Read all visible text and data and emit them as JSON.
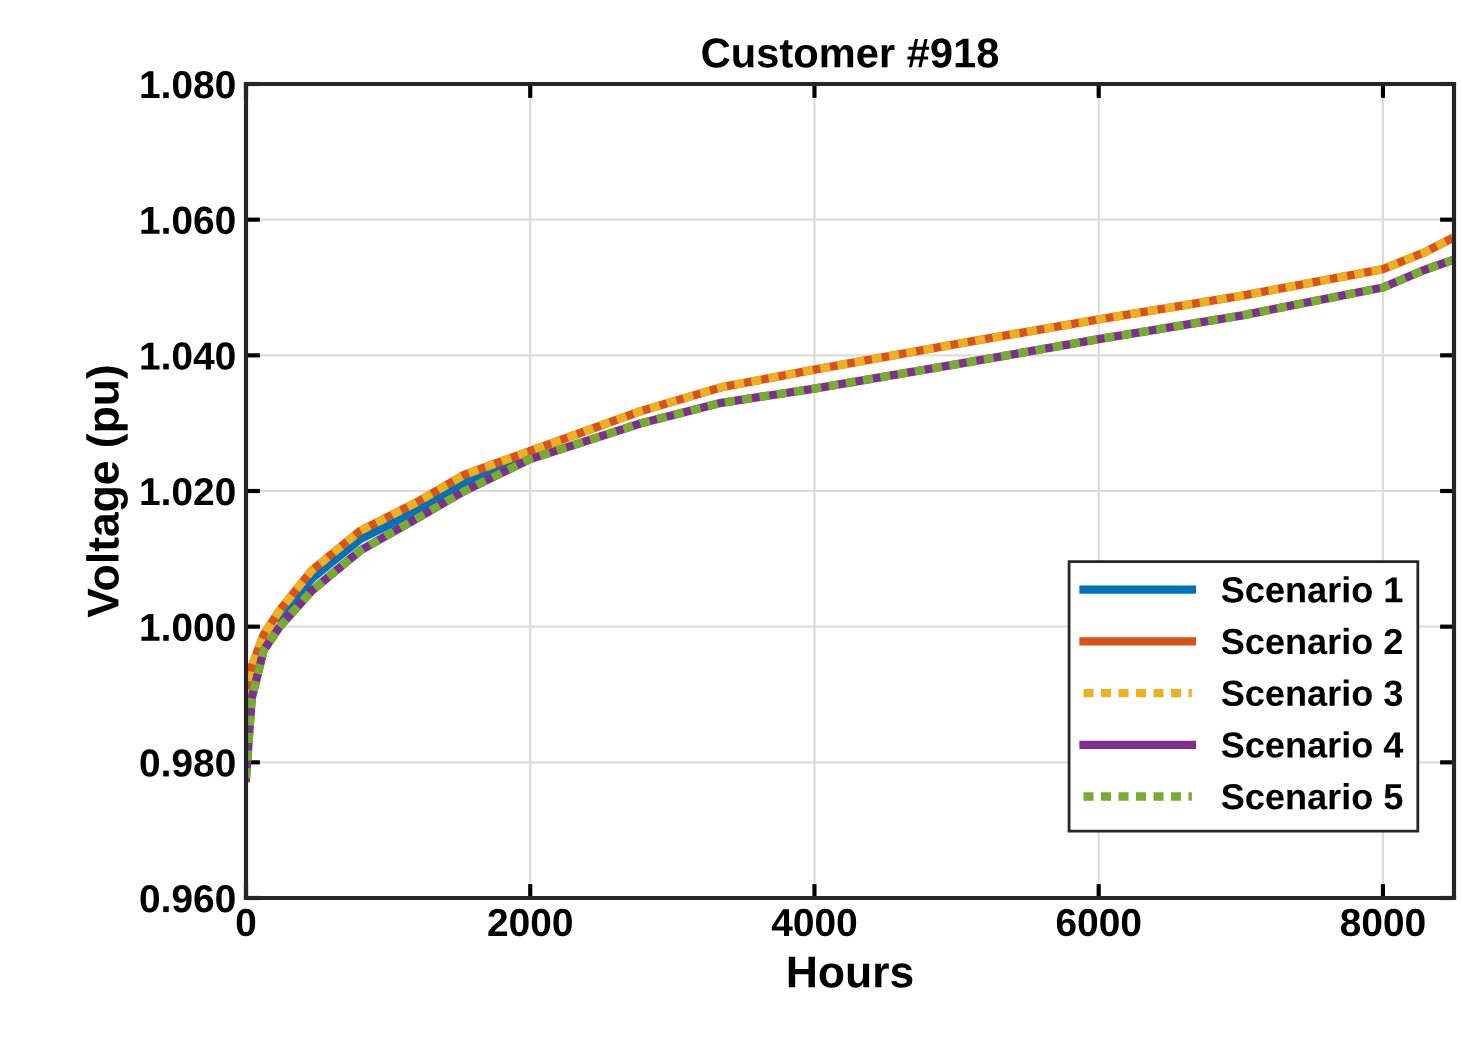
{
  "chart_data": {
    "type": "line",
    "title": "Customer #918",
    "xlabel": "Hours",
    "ylabel": "Voltage (pu)",
    "xlim": [
      0,
      8500
    ],
    "ylim": [
      0.96,
      1.08
    ],
    "xticks": [
      0,
      2000,
      4000,
      6000,
      8000
    ],
    "yticks": [
      {
        "value": 0.96,
        "label": "0.960"
      },
      {
        "value": 0.98,
        "label": "0.980"
      },
      {
        "value": 1.0,
        "label": "1.000"
      },
      {
        "value": 1.02,
        "label": "1.020"
      },
      {
        "value": 1.04,
        "label": "1.040"
      },
      {
        "value": 1.06,
        "label": "1.060"
      },
      {
        "value": 1.08,
        "label": "1.080"
      }
    ],
    "grid": true,
    "legend": "bottom right",
    "marker": "none",
    "x": [
      0,
      40,
      124,
      237,
      463,
      802,
      1198,
      1537,
      2000,
      2780,
      3345,
      4000,
      5034,
      6000,
      7011,
      8000,
      8305,
      8500
    ],
    "series": [
      {
        "name": "Scenario 1",
        "color": "#0072bd",
        "line_style": "solid",
        "values": [
          null,
          null,
          null,
          1.0012,
          1.0071,
          1.0129,
          1.0171,
          1.0212,
          1.0249,
          null,
          null,
          null,
          null,
          null,
          null,
          null,
          null,
          null
        ]
      },
      {
        "name": "Scenario 2",
        "color": "#d95319",
        "line_style": "solid",
        "values": [
          0.9894,
          0.9941,
          0.9988,
          1.0024,
          1.0083,
          1.0141,
          1.0183,
          1.0224,
          1.0259,
          1.0318,
          1.0353,
          1.0379,
          1.0418,
          1.0453,
          1.0488,
          1.0527,
          1.0553,
          1.0574
        ]
      },
      {
        "name": "Scenario 3",
        "color": "#edb120",
        "line_style": "dotted",
        "values": [
          0.9894,
          0.9941,
          0.9988,
          1.0024,
          1.0083,
          1.0141,
          1.0183,
          1.0224,
          1.0259,
          1.0318,
          1.0353,
          1.0379,
          1.0418,
          1.0453,
          1.0488,
          1.0527,
          1.0553,
          1.0574
        ]
      },
      {
        "name": "Scenario 4",
        "color": "#7e2f8e",
        "line_style": "solid",
        "values": [
          0.9777,
          0.9894,
          0.9965,
          1.0,
          1.0053,
          1.0112,
          1.0159,
          1.02,
          1.0247,
          1.03,
          1.033,
          1.0351,
          1.0388,
          1.0424,
          1.0459,
          1.05,
          1.0527,
          1.0541
        ]
      },
      {
        "name": "Scenario 5",
        "color": "#77ac30",
        "line_style": "dotted",
        "values": [
          0.9777,
          0.9894,
          0.9965,
          1.0,
          1.0053,
          1.0112,
          1.0159,
          1.02,
          1.0247,
          1.03,
          1.033,
          1.0351,
          1.0388,
          1.0424,
          1.0459,
          1.05,
          1.0527,
          1.0541
        ]
      }
    ]
  }
}
